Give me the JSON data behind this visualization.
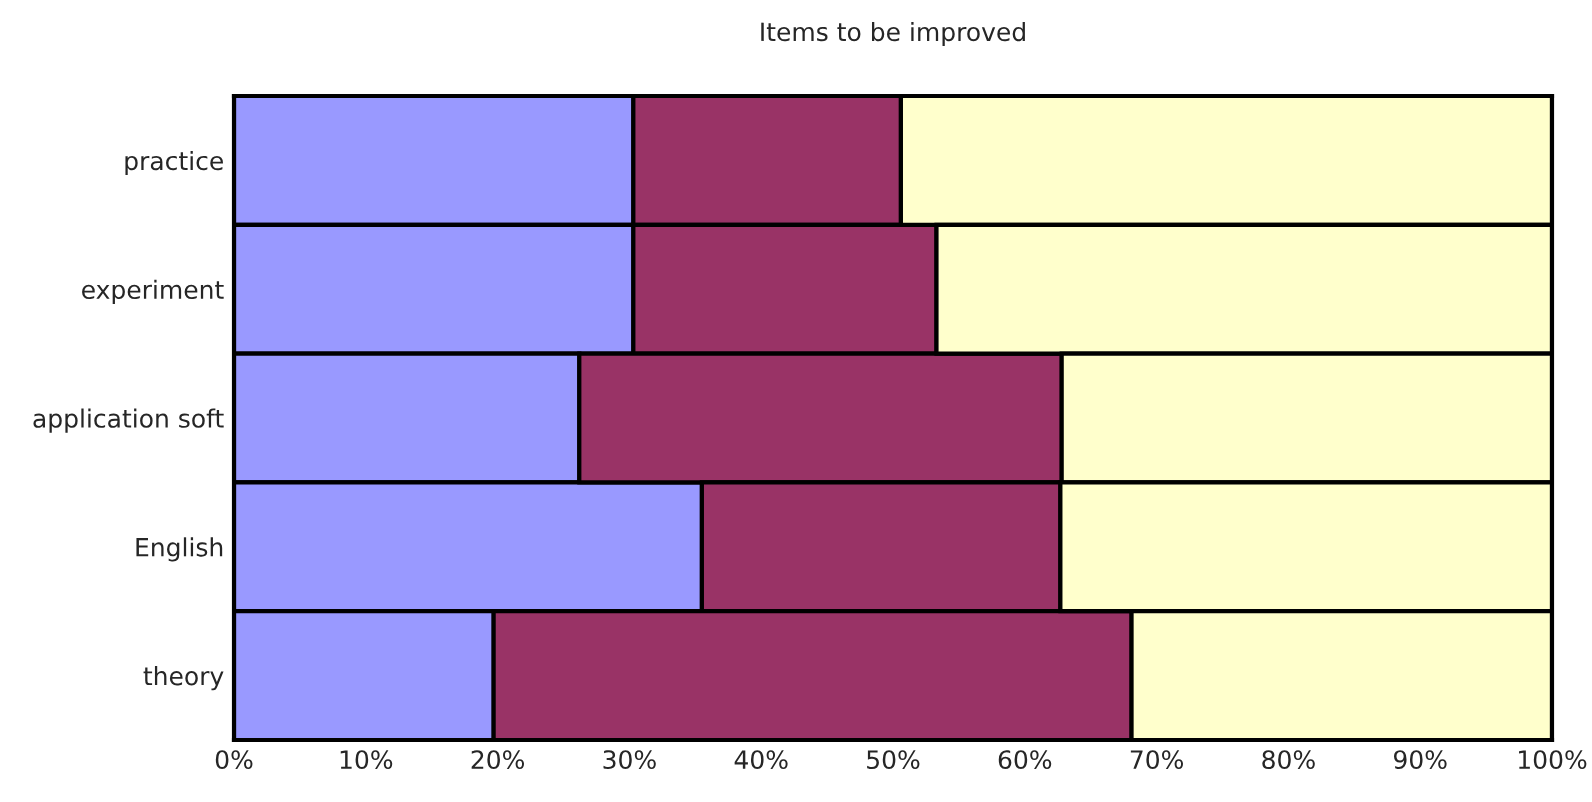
{
  "chart_data": {
    "type": "bar",
    "title": "Items to be improved",
    "orientation": "horizontal",
    "stacked": true,
    "categories": [
      "practice",
      "experiment",
      "application soft",
      "English",
      "theory"
    ],
    "series": [
      {
        "color": "#9999ff",
        "values": [
          30.3,
          30.3,
          26.2,
          35.5,
          19.7
        ]
      },
      {
        "color": "#993366",
        "values": [
          20.3,
          23.0,
          36.6,
          27.2,
          48.4
        ]
      },
      {
        "color": "#ffffcc",
        "values": [
          49.4,
          46.7,
          37.2,
          37.3,
          31.9
        ]
      }
    ],
    "xlim": [
      0,
      100
    ],
    "xticks": [
      {
        "value": 0,
        "label": "0%"
      },
      {
        "value": 10,
        "label": "10%"
      },
      {
        "value": 20,
        "label": "20%"
      },
      {
        "value": 30,
        "label": "30%"
      },
      {
        "value": 40,
        "label": "40%"
      },
      {
        "value": 50,
        "label": "50%"
      },
      {
        "value": 60,
        "label": "60%"
      },
      {
        "value": 70,
        "label": "70%"
      },
      {
        "value": 80,
        "label": "80%"
      },
      {
        "value": 90,
        "label": "90%"
      },
      {
        "value": 100,
        "label": "100%"
      }
    ],
    "legend": false
  }
}
